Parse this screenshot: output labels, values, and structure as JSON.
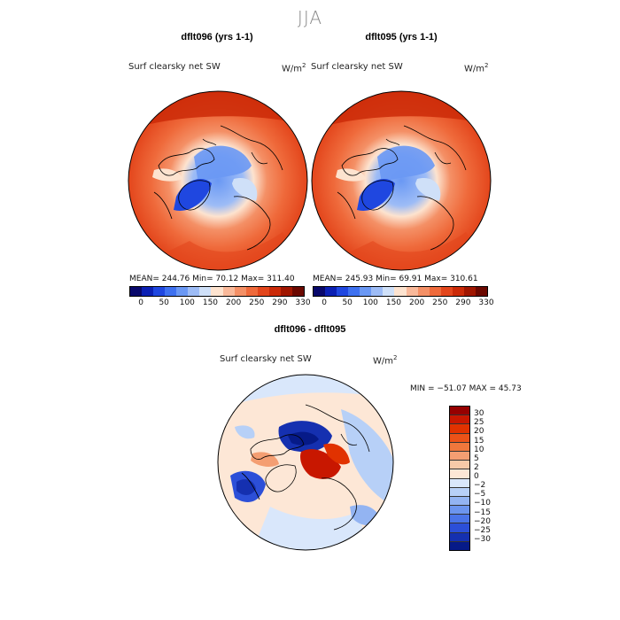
{
  "title": "JJA",
  "panels": [
    {
      "title": "dflt096 (yrs 1-1)",
      "variable": "Surf clearsky net SW",
      "units": "W/m",
      "units_exp": "2",
      "stats": "MEAN= 244.76   Min=  70.12   Max= 311.40"
    },
    {
      "title": "dflt095 (yrs 1-1)",
      "variable": "Surf clearsky net SW",
      "units": "W/m",
      "units_exp": "2",
      "stats": "MEAN= 245.93   Min=  69.91   Max= 310.61"
    }
  ],
  "abs_colorbar": {
    "colors": [
      "#08086b",
      "#0b20b4",
      "#1f47e0",
      "#3e71f0",
      "#6a98f4",
      "#9dbcf6",
      "#cfe0f8",
      "#fde3cf",
      "#f9b99a",
      "#f49066",
      "#ef6a3b",
      "#e3461c",
      "#cb2a08",
      "#a01600",
      "#6b0800"
    ],
    "ticks": [
      "0",
      "50",
      "100",
      "150",
      "200",
      "250",
      "290",
      "330"
    ]
  },
  "diff_panel": {
    "title": "dflt096 - dflt095",
    "variable": "Surf clearsky net SW",
    "units": "W/m",
    "units_exp": "2",
    "minmax": "MIN = −51.07  MAX =  45.73"
  },
  "diff_colorbar": {
    "colors": [
      "#960000",
      "#c81700",
      "#e13200",
      "#ec5218",
      "#f0773c",
      "#f49e72",
      "#f7c9a8",
      "#fde7d6",
      "#d9e7fb",
      "#b7d0f7",
      "#93b4f2",
      "#6c95ee",
      "#4a74e8",
      "#2c4fd8",
      "#1530b0",
      "#061a88"
    ],
    "labels": [
      "30",
      "25",
      "20",
      "15",
      "10",
      "5",
      "2",
      "0",
      "−2",
      "−5",
      "−10",
      "−15",
      "−20",
      "−25",
      "−30"
    ]
  }
}
